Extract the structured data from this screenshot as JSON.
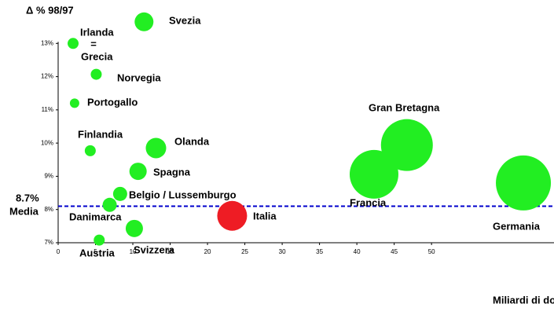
{
  "chart_data": {
    "type": "scatter",
    "title": "Δ % 98/97",
    "x_label": "Miliardi di do",
    "categories": [
      "Svezia",
      "Irlanda",
      "Norvegia",
      "Portogallo",
      "Finlandia",
      "Olanda",
      "Spagna",
      "Belgio / Lussemburgo",
      "Danimarca",
      "Svizzera",
      "Austria",
      "Italia",
      "Gran Bretagna",
      "Francia",
      "Germania"
    ],
    "x": [
      11.5,
      2.0,
      5.1,
      2.2,
      4.3,
      13.1,
      10.7,
      8.3,
      6.9,
      10.2,
      5.5,
      23.3,
      46.7,
      42.3,
      62.3
    ],
    "values": [
      13.65,
      13.0,
      12.07,
      11.2,
      9.77,
      9.85,
      9.15,
      8.47,
      8.14,
      7.43,
      7.08,
      7.81,
      9.94,
      9.06,
      8.8
    ],
    "sizes": [
      12,
      7,
      7,
      6,
      7,
      13,
      11,
      9,
      9,
      11,
      7,
      19,
      33,
      31,
      35
    ],
    "colors": [
      "#22ee22",
      "#22ee22",
      "#22ee22",
      "#22ee22",
      "#22ee22",
      "#22ee22",
      "#22ee22",
      "#22ee22",
      "#22ee22",
      "#22ee22",
      "#22ee22",
      "#ee1c24",
      "#22ee22",
      "#22ee22",
      "#22ee22"
    ],
    "annotations": [
      "=",
      "Grecia",
      "8.7%",
      "Media"
    ],
    "reference_line": {
      "value": 8.1,
      "color": "#0000cc"
    },
    "xlim": [
      0,
      66.4
    ],
    "ylim": [
      7,
      14
    ],
    "xticks": [
      0,
      5,
      10,
      15,
      20,
      25,
      30,
      35,
      40,
      45,
      50
    ],
    "yticks": [
      {
        "value": 7,
        "label": "7%"
      },
      {
        "value": 8,
        "label": "8%"
      },
      {
        "value": 9,
        "label": "9%"
      },
      {
        "value": 10,
        "label": "10%"
      },
      {
        "value": 11,
        "label": "11%"
      },
      {
        "value": 12,
        "label": "12%"
      },
      {
        "value": 13,
        "label": "13%"
      }
    ]
  }
}
